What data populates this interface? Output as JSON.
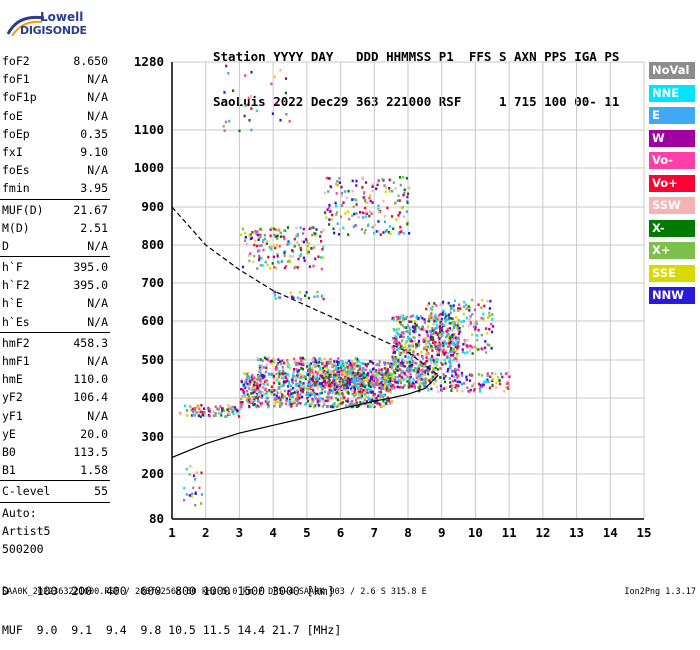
{
  "logo": {
    "line1": "Lowell",
    "line2": "DIGISONDE"
  },
  "header": {
    "line1": "Station YYYY DAY   DDD HHMMSS P1  FFS S AXN PPS IGA PS",
    "line2": "SaoLuis 2022 Dec29 363 221000 RSF     1 715 100 00- 11"
  },
  "params": [
    {
      "label": "foF2",
      "value": "8.650"
    },
    {
      "label": "foF1",
      "value": "N/A"
    },
    {
      "label": "foF1p",
      "value": "N/A"
    },
    {
      "label": "foE",
      "value": "N/A"
    },
    {
      "label": "foEp",
      "value": "0.35"
    },
    {
      "label": "fxI",
      "value": "9.10"
    },
    {
      "label": "foEs",
      "value": "N/A"
    },
    {
      "label": "fmin",
      "value": "3.95"
    },
    {
      "sep": true
    },
    {
      "label": "MUF(D)",
      "value": "21.67"
    },
    {
      "label": "M(D)",
      "value": "2.51"
    },
    {
      "label": "D",
      "value": "N/A"
    },
    {
      "sep": true
    },
    {
      "label": "h`F",
      "value": "395.0"
    },
    {
      "label": "h`F2",
      "value": "395.0"
    },
    {
      "label": "h`E",
      "value": "N/A"
    },
    {
      "label": "h`Es",
      "value": "N/A"
    },
    {
      "sep": true
    },
    {
      "label": "hmF2",
      "value": "458.3"
    },
    {
      "label": "hmF1",
      "value": "N/A"
    },
    {
      "label": "hmE",
      "value": "110.0"
    },
    {
      "label": "yF2",
      "value": "106.4"
    },
    {
      "label": "yF1",
      "value": "N/A"
    },
    {
      "label": "yE",
      "value": "20.0"
    },
    {
      "label": "B0",
      "value": "113.5"
    },
    {
      "label": "B1",
      "value": "1.58"
    },
    {
      "sep": true
    },
    {
      "label": "C-level",
      "value": "55"
    },
    {
      "sep": true
    },
    {
      "label": "Auto:",
      "value": ""
    },
    {
      "label": "Artist5",
      "value": ""
    },
    {
      "label": "500200",
      "value": ""
    }
  ],
  "legend": [
    {
      "label": "NoVal",
      "color": "#8c8c8c"
    },
    {
      "label": "NNE",
      "color": "#00e5ff"
    },
    {
      "label": "E",
      "color": "#3fa9f5"
    },
    {
      "label": "W",
      "color": "#a0009f"
    },
    {
      "label": "Vo-",
      "color": "#ff3ea8"
    },
    {
      "label": "Vo+",
      "color": "#ff0033"
    },
    {
      "label": "SSW",
      "color": "#f7b3b3"
    },
    {
      "label": "X-",
      "color": "#007a00"
    },
    {
      "label": "X+",
      "color": "#7cbf4a"
    },
    {
      "label": "SSE",
      "color": "#d9d900"
    },
    {
      "label": "NNW",
      "color": "#2a1ad9"
    }
  ],
  "footer": {
    "line1": "D    100  200  400  600  800 1000 1500 3000 [km]",
    "line2": "MUF  9.0  9.1  9.4  9.8 10.5 11.5 14.4 21.7 [MHz]"
  },
  "bottom": {
    "left": "SAA0K_2022363221000.RSF / 280fx256h 50 kHz 5.0 km / DPS-4 SAA0K 903 / 2.6 S 315.8 E",
    "right": "Ion2Png 1.3.17"
  },
  "chart_data": {
    "type": "scatter",
    "xlim": [
      1,
      15
    ],
    "ylim": [
      80,
      1280
    ],
    "xticks": [
      "1",
      "2",
      "3",
      "4",
      "5",
      "6",
      "7",
      "8",
      "9",
      "10",
      "11",
      "12",
      "13",
      "14",
      "15"
    ],
    "yticks": [
      "80",
      "200",
      "300",
      "400",
      "500",
      "600",
      "700",
      "800",
      "900",
      "1000",
      "1100",
      "1280"
    ],
    "grid": true,
    "lines": [
      {
        "points": [
          [
            1,
            245
          ],
          [
            2,
            282
          ],
          [
            3,
            310
          ],
          [
            4,
            330
          ],
          [
            5,
            350
          ],
          [
            6,
            372
          ],
          [
            7,
            392
          ],
          [
            7.5,
            400
          ],
          [
            8,
            410
          ],
          [
            8.5,
            425
          ],
          [
            8.9,
            460
          ]
        ]
      },
      {
        "dashed": true,
        "points": [
          [
            1,
            900
          ],
          [
            2,
            800
          ],
          [
            3,
            735
          ],
          [
            4,
            680
          ],
          [
            5,
            640
          ],
          [
            6,
            600
          ],
          [
            7,
            560
          ],
          [
            8,
            520
          ],
          [
            8.9,
            460
          ]
        ]
      }
    ],
    "clusters": [
      {
        "x": [
          1.2,
          3.0
        ],
        "y": [
          355,
          385
        ],
        "n": 90
      },
      {
        "x": [
          3.0,
          7.5
        ],
        "y": [
          380,
          470
        ],
        "n": 900
      },
      {
        "x": [
          5.0,
          8.5
        ],
        "y": [
          430,
          500
        ],
        "n": 500
      },
      {
        "x": [
          3.5,
          6.5
        ],
        "y": [
          470,
          510
        ],
        "n": 150
      },
      {
        "x": [
          7.5,
          9.5
        ],
        "y": [
          470,
          620
        ],
        "n": 450
      },
      {
        "x": [
          8.5,
          10.5
        ],
        "y": [
          520,
          660
        ],
        "n": 200
      },
      {
        "x": [
          8.2,
          11.0
        ],
        "y": [
          420,
          470
        ],
        "n": 140
      },
      {
        "x": [
          3.0,
          5.5
        ],
        "y": [
          740,
          850
        ],
        "n": 160
      },
      {
        "x": [
          5.5,
          8.0
        ],
        "y": [
          830,
          980
        ],
        "n": 170
      },
      {
        "x": [
          2.5,
          4.5
        ],
        "y": [
          1100,
          1280
        ],
        "n": 30
      },
      {
        "x": [
          4.0,
          5.5
        ],
        "y": [
          660,
          680
        ],
        "n": 20
      },
      {
        "x": [
          1.3,
          1.9
        ],
        "y": [
          120,
          230
        ],
        "n": 20
      }
    ]
  }
}
